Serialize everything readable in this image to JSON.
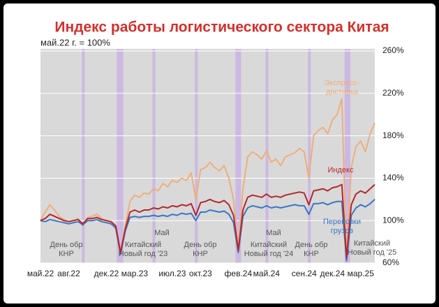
{
  "chart_data": {
    "type": "line",
    "title": "Индекс работы логистического сектора Китая",
    "subtitle": "май.22 г. = 100%",
    "x": [
      0,
      0.5,
      1,
      1.5,
      2,
      2.5,
      3,
      3.5,
      4,
      4.5,
      5,
      5.5,
      6,
      6.5,
      7,
      7.5,
      8,
      8.5,
      9,
      9.5,
      10,
      10.5,
      11,
      11.5,
      12,
      12.5,
      13,
      13.5,
      14,
      14.5,
      15,
      15.5,
      16,
      16.5,
      17,
      17.5,
      18,
      18.5,
      19,
      19.5,
      20,
      20.5,
      21,
      21.5,
      22,
      22.5,
      23,
      23.5,
      24,
      24.5,
      25,
      25.5,
      26,
      26.5,
      27,
      27.5,
      28,
      28.5,
      29,
      29.5,
      30,
      30.5,
      31,
      31.5,
      32,
      32.5,
      33,
      33.5,
      34,
      34.5,
      35,
      35.5
    ],
    "xlim": [
      0,
      35.5
    ],
    "xticks": [
      {
        "value": 0,
        "label": "май.22"
      },
      {
        "value": 3,
        "label": "авг.22"
      },
      {
        "value": 7,
        "label": "дек.22"
      },
      {
        "value": 10,
        "label": "мар.23"
      },
      {
        "value": 14,
        "label": "июл.23"
      },
      {
        "value": 17,
        "label": "окт.23"
      },
      {
        "value": 21,
        "label": "фев.24"
      },
      {
        "value": 24,
        "label": "май.24"
      },
      {
        "value": 28,
        "label": "сен.24"
      },
      {
        "value": 31,
        "label": "дек.24"
      },
      {
        "value": 34,
        "label": "мар.25"
      }
    ],
    "ylim": [
      60,
      260
    ],
    "yticks": [
      {
        "value": 60,
        "label": "60%"
      },
      {
        "value": 100,
        "label": "100%"
      },
      {
        "value": 140,
        "label": "140%"
      },
      {
        "value": 180,
        "label": "180%"
      },
      {
        "value": 220,
        "label": "220%"
      },
      {
        "value": 260,
        "label": "260%"
      }
    ],
    "grid": true,
    "highlight_color": "#c9b3e3",
    "highlights": [
      [
        4.4,
        4.7
      ],
      [
        8.1,
        8.8
      ],
      [
        11.9,
        12.2
      ],
      [
        16.4,
        16.7
      ],
      [
        20.7,
        21.3
      ],
      [
        23.9,
        24.2
      ],
      [
        28.4,
        28.7
      ],
      [
        32.3,
        32.9
      ]
    ],
    "series": [
      {
        "name": "Экспресс-доставка",
        "color": "#efae7c",
        "values": [
          100,
          108,
          115,
          110,
          104,
          101,
          99,
          100,
          102,
          95,
          103,
          104,
          106,
          102,
          100,
          98,
          92,
          68,
          95,
          118,
          124,
          122,
          126,
          125,
          130,
          128,
          135,
          132,
          138,
          136,
          140,
          138,
          145,
          120,
          148,
          150,
          155,
          150,
          147,
          152,
          140,
          120,
          72,
          130,
          160,
          165,
          162,
          158,
          166,
          155,
          158,
          152,
          160,
          162,
          164,
          168,
          165,
          140,
          180,
          185,
          188,
          182,
          195,
          200,
          215,
          65,
          150,
          170,
          175,
          165,
          182,
          192
        ]
      },
      {
        "name": "Индекс",
        "color": "#b3282d",
        "values": [
          100,
          102,
          106,
          104,
          102,
          100,
          99,
          100,
          101,
          97,
          102,
          102,
          103,
          101,
          100,
          99,
          95,
          70,
          92,
          108,
          110,
          108,
          110,
          110,
          112,
          111,
          113,
          112,
          114,
          113,
          115,
          114,
          116,
          105,
          117,
          118,
          120,
          118,
          117,
          119,
          115,
          105,
          72,
          110,
          122,
          124,
          123,
          122,
          125,
          122,
          123,
          122,
          124,
          125,
          126,
          127,
          126,
          115,
          128,
          129,
          130,
          128,
          131,
          132,
          134,
          65,
          115,
          125,
          128,
          126,
          130,
          134
        ]
      },
      {
        "name": "Перевозки грузов",
        "color": "#3a76c4",
        "values": [
          100,
          99,
          101,
          100,
          99,
          98,
          97,
          98,
          99,
          96,
          100,
          100,
          101,
          99,
          98,
          97,
          93,
          68,
          90,
          103,
          104,
          103,
          104,
          104,
          105,
          104,
          105,
          104,
          106,
          105,
          107,
          106,
          107,
          100,
          108,
          108,
          110,
          109,
          108,
          109,
          106,
          98,
          70,
          104,
          112,
          114,
          113,
          112,
          114,
          112,
          113,
          112,
          113,
          114,
          115,
          114,
          114,
          106,
          116,
          116,
          117,
          115,
          117,
          118,
          118,
          62,
          105,
          112,
          115,
          113,
          116,
          120
        ]
      }
    ],
    "annotations": [
      "День обр КНР",
      "Китайский Новый год '23",
      "Май",
      "День обр КНР",
      "Китайский Новый год '24",
      "Май",
      "День обр КНР",
      "Китайский Новый год '25"
    ]
  }
}
